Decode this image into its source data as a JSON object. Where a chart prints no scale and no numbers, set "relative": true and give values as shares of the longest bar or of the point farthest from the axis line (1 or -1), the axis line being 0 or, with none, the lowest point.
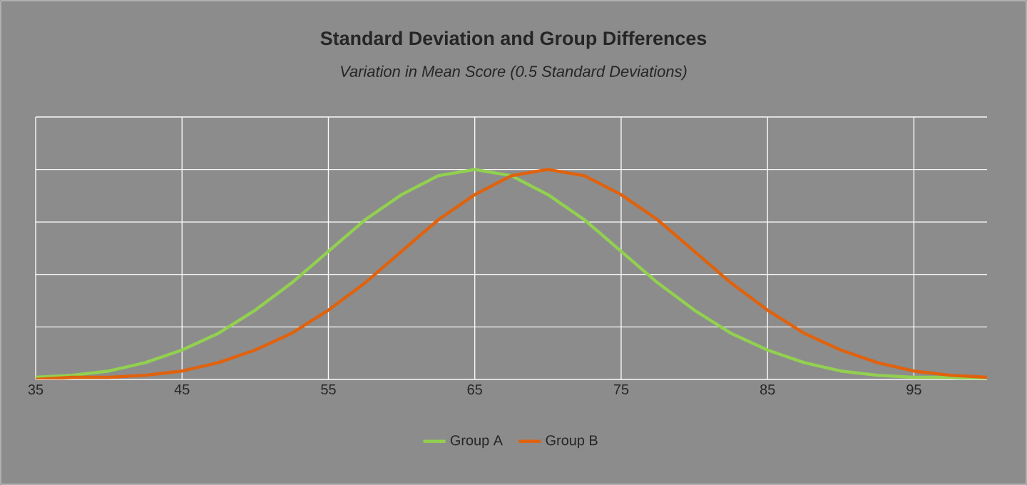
{
  "chart_data": {
    "type": "line",
    "title": "Standard Deviation and Group Differences",
    "subtitle": "*Variation in Mean Score (0.5 Standard Deviations)*",
    "relative": true,
    "x": [
      35,
      37.5,
      40,
      42.5,
      45,
      47.5,
      50,
      52.5,
      55,
      57.5,
      60,
      62.5,
      65,
      67.5,
      70,
      72.5,
      75,
      77.5,
      80,
      82.5,
      85,
      87.5,
      90,
      92.5,
      95,
      97.5,
      100
    ],
    "xlim": [
      35,
      100
    ],
    "xticks": [
      35,
      45,
      55,
      65,
      75,
      85,
      95
    ],
    "grid": true,
    "legend": "bottom",
    "marker": "none",
    "line_style": "solid",
    "series": [
      {
        "name": "Group A",
        "color": "#92d050",
        "values": [
          0.01,
          0.02,
          0.04,
          0.08,
          0.14,
          0.22,
          0.33,
          0.46,
          0.61,
          0.76,
          0.88,
          0.97,
          1,
          0.97,
          0.88,
          0.76,
          0.61,
          0.46,
          0.33,
          0.22,
          0.14,
          0.08,
          0.04,
          0.02,
          0.01,
          0.01,
          0
        ]
      },
      {
        "name": "Group B",
        "color": "#e0620d",
        "values": [
          0,
          0.01,
          0.01,
          0.02,
          0.04,
          0.08,
          0.14,
          0.22,
          0.33,
          0.46,
          0.61,
          0.76,
          0.88,
          0.97,
          1,
          0.97,
          0.88,
          0.76,
          0.61,
          0.46,
          0.33,
          0.22,
          0.14,
          0.08,
          0.04,
          0.02,
          0.01
        ]
      }
    ]
  }
}
